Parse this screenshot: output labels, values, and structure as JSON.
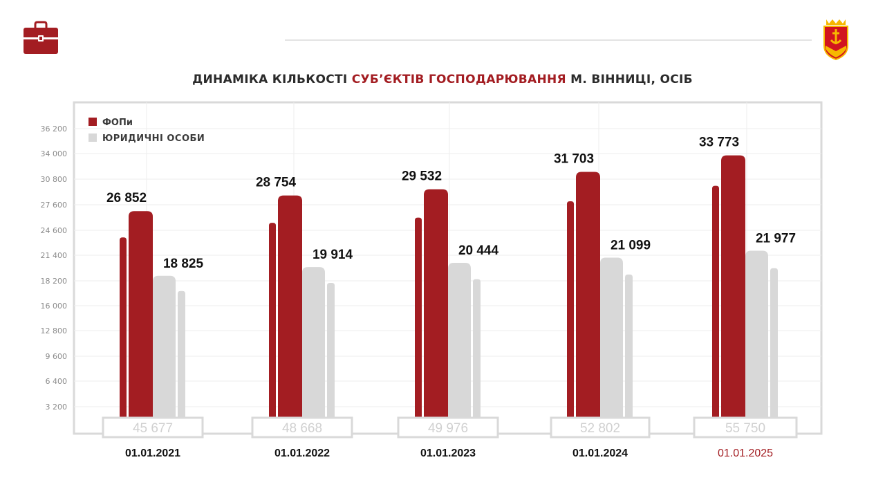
{
  "title": {
    "part1": "ДИНАМІКА КІЛЬКОСТІ",
    "accent": "СУБ’ЄКТІВ ГОСПОДАРЮВАННЯ",
    "part2": "М. ВІННИЦІ, ОСІБ"
  },
  "colors": {
    "fop": "#a31d22",
    "legal": "#d8d8d8",
    "accent": "#a31d22",
    "frame": "#d9d9d9",
    "total_text": "#d0d0d0"
  },
  "icons": {
    "left": "briefcase-icon",
    "right": "city-coat-of-arms-icon"
  },
  "chart_data": {
    "type": "bar",
    "title": "ДИНАМІКА КІЛЬКОСТІ СУБ’ЄКТІВ ГОСПОДАРЮВАННЯ М. ВІННИЦІ, ОСІБ",
    "categories": [
      "01.01.2021",
      "01.01.2022",
      "01.01.2023",
      "01.01.2024",
      "01.01.2025"
    ],
    "highlight_category": "01.01.2025",
    "series": [
      {
        "name": "ФОПи",
        "values": [
          26852,
          28754,
          29532,
          31703,
          33773
        ],
        "labels": [
          "26 852",
          "28 754",
          "29 532",
          "31 703",
          "33 773"
        ]
      },
      {
        "name": "ЮРИДИЧНІ ОСОБИ",
        "values": [
          18825,
          19914,
          20444,
          21099,
          21977
        ],
        "labels": [
          "18 825",
          "19 914",
          "20 444",
          "21 099",
          "21 977"
        ]
      }
    ],
    "totals": [
      "45 677",
      "48 668",
      "49 976",
      "52 802",
      "55 750"
    ],
    "y_ticks": [
      3200,
      6400,
      9600,
      12800,
      16000,
      18200,
      21400,
      24600,
      27600,
      30800,
      34000,
      36200
    ],
    "y_tick_labels": [
      "3 200",
      "6 400",
      "9 600",
      "12 800",
      "16 000",
      "18 200",
      "21 400",
      "24 600",
      "27 600",
      "30 800",
      "34 000",
      "36 200"
    ],
    "legend_position": "top-left",
    "grid": true
  }
}
